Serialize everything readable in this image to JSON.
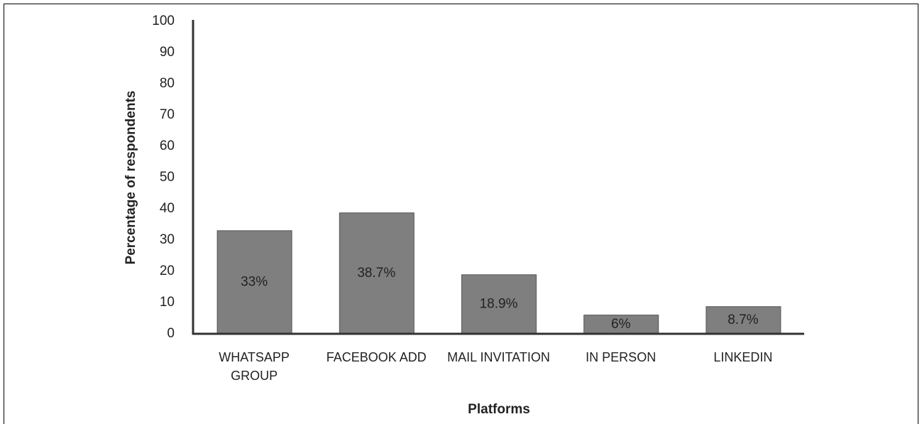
{
  "chart_data": {
    "type": "bar",
    "x_label": "Platforms",
    "y_label": "Percentage of respondents",
    "categories": [
      "WHATSAPP GROUP",
      "FACEBOOK ADD",
      "MAIL INVITATION",
      "IN PERSON",
      "LINKEDIN"
    ],
    "values": [
      33,
      38.7,
      18.9,
      6,
      8.7
    ],
    "value_labels": [
      "33%",
      "38.7%",
      "18.9%",
      "6%",
      "8.7%"
    ],
    "color": "#7f7f7f",
    "ylim": [
      0,
      100
    ],
    "yticks": [
      0,
      10,
      20,
      30,
      40,
      50,
      60,
      70,
      80,
      90,
      100
    ],
    "grid": false
  }
}
